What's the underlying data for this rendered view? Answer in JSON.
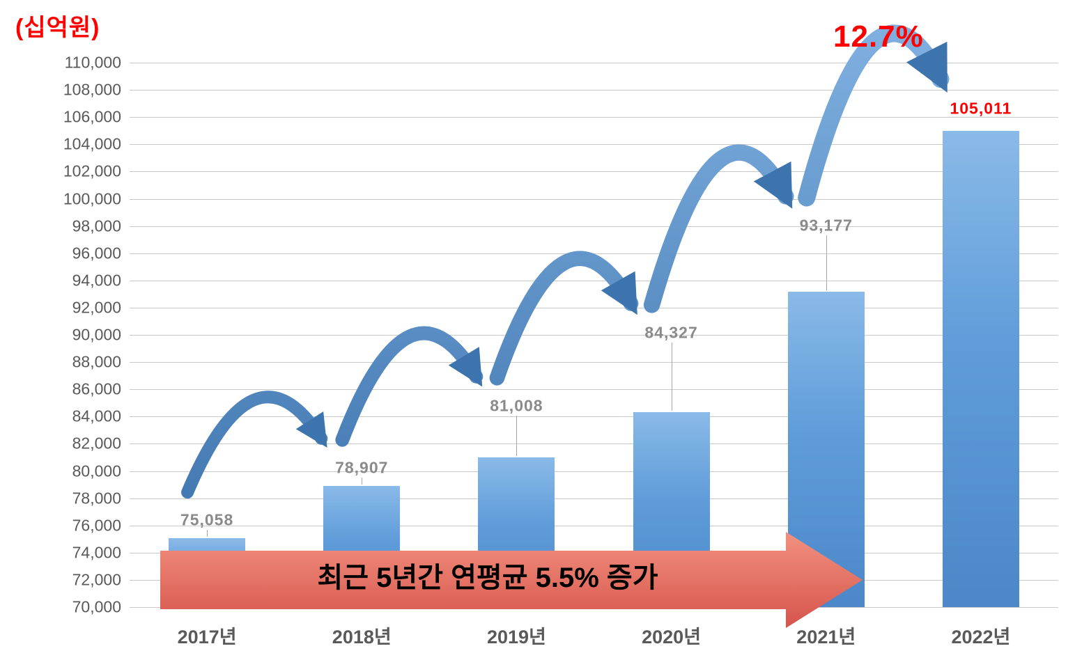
{
  "unit_label": "(십억원)",
  "growth_callout": "12.7%",
  "banner": {
    "text": "최근 5년간 연평균 5.5% 증가"
  },
  "chart_data": {
    "type": "bar",
    "title": "",
    "unit": "십억원",
    "categories": [
      "2017년",
      "2018년",
      "2019년",
      "2020년",
      "2021년",
      "2022년"
    ],
    "values": [
      75058,
      78907,
      81008,
      84327,
      93177,
      105011
    ],
    "value_labels": [
      "75,058",
      "78,907",
      "81,008",
      "84,327",
      "93,177",
      "105,011"
    ],
    "ylim": [
      70000,
      110000
    ],
    "ytick_step": 2000,
    "yticks": [
      "70,000",
      "72,000",
      "74,000",
      "76,000",
      "78,000",
      "80,000",
      "82,000",
      "84,000",
      "86,000",
      "88,000",
      "90,000",
      "92,000",
      "94,000",
      "96,000",
      "98,000",
      "100,000",
      "102,000",
      "104,000",
      "106,000",
      "108,000",
      "110,000"
    ],
    "grid": true,
    "legend": "none",
    "highlight_index": 5,
    "annotations": [
      {
        "text": "12.7%",
        "color": "#ff0000",
        "position": "above-last-bar",
        "meaning": "2021→2022 growth rate"
      },
      {
        "text": "최근 5년간 연평균 5.5% 증가",
        "type": "arrow-banner",
        "position": "bottom-across-bars"
      }
    ],
    "colors": {
      "bar_top": "#8abae8",
      "bar_bottom": "#4c88c9",
      "value_label": "#8a8a8a",
      "highlight_label": "#ff0000",
      "axis_label": "#595959",
      "gridline": "#c9c9c9",
      "growth_arc": "#4f86bf",
      "banner_top": "#f29180",
      "banner_bottom": "#d5544b"
    }
  }
}
